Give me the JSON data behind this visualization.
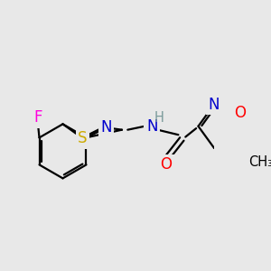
{
  "bg_color": "#e8e8e8",
  "bond_color": "#000000",
  "bond_width": 1.6,
  "atom_bg": "#e8e8e8",
  "colors": {
    "F": "#ff00dd",
    "N": "#0000cc",
    "S": "#ccaa00",
    "O": "#ff0000",
    "H": "#7a9a9a",
    "C": "#000000"
  },
  "fontsize": 11.5
}
